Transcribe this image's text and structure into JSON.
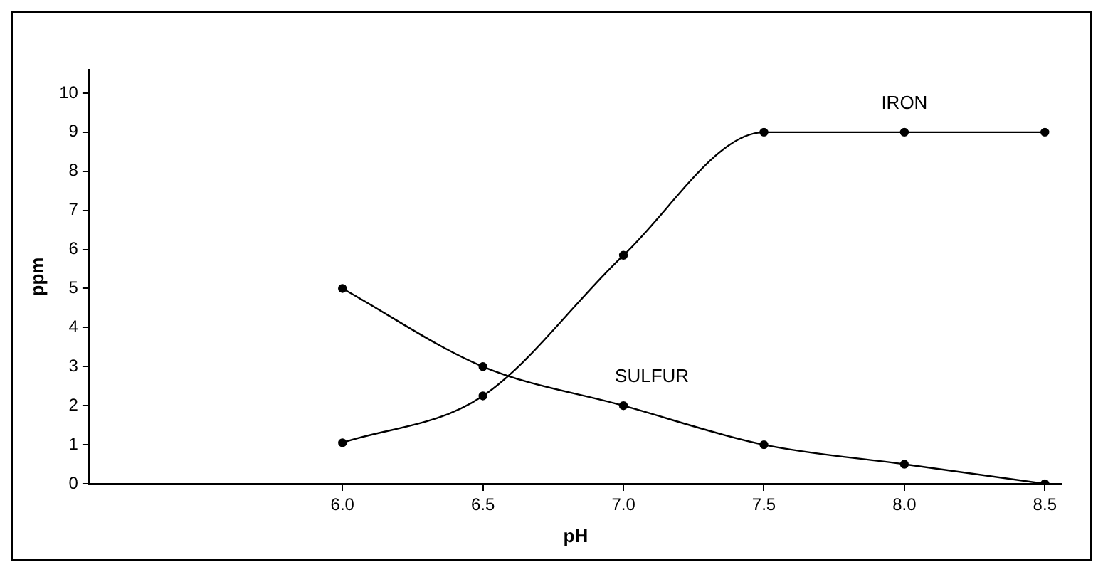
{
  "chart_data": {
    "type": "line",
    "xlabel": "pH",
    "ylabel": "ppm",
    "xlim": [
      5.1,
      8.56
    ],
    "ylim": [
      0,
      10.6
    ],
    "xticks": [
      {
        "value": 6,
        "label": "6.0"
      },
      {
        "value": 6.5,
        "label": "6.5"
      },
      {
        "value": 7,
        "label": "7.0"
      },
      {
        "value": 7.5,
        "label": "7.5"
      },
      {
        "value": 8,
        "label": "8.0"
      },
      {
        "value": 8.5,
        "label": "8.5"
      }
    ],
    "yticks": [
      0,
      1,
      2,
      3,
      4,
      5,
      6,
      7,
      8,
      9,
      10
    ],
    "x": [
      6,
      6.5,
      7,
      7.5,
      8,
      8.5
    ],
    "series": [
      {
        "name": "IRON",
        "color": "#000000",
        "values": [
          1.05,
          2.25,
          5.85,
          9,
          9,
          9
        ]
      },
      {
        "name": "SULFUR",
        "color": "#000000",
        "values": [
          5,
          3,
          2,
          1,
          0.5,
          0
        ]
      }
    ],
    "grid": false,
    "legend": false,
    "marker": "circle",
    "line_style": "solid"
  }
}
